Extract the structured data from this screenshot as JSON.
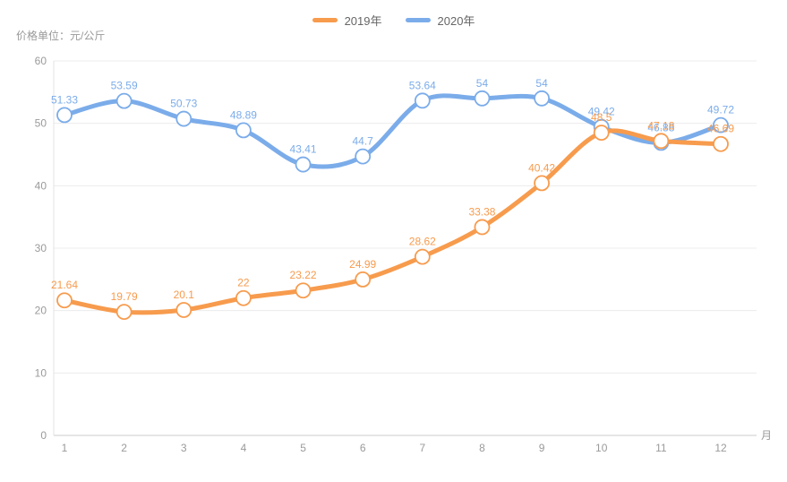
{
  "chart_data": {
    "type": "line",
    "title": "",
    "unit_label": "价格单位：元/公斤",
    "x_axis_name": "月",
    "categories": [
      1,
      2,
      3,
      4,
      5,
      6,
      7,
      8,
      9,
      10,
      11,
      12
    ],
    "y_ticks": [
      0,
      10,
      20,
      30,
      40,
      50,
      60
    ],
    "ylim": [
      0,
      60
    ],
    "grid": true,
    "smooth": true,
    "point_labels": true,
    "legend_position": "top-center",
    "series": [
      {
        "name": "2019年",
        "color": "#F79B4D",
        "values": [
          21.64,
          19.79,
          20.1,
          22,
          23.22,
          24.99,
          28.62,
          33.38,
          40.42,
          48.5,
          47.18,
          46.69
        ]
      },
      {
        "name": "2020年",
        "color": "#7BACEA",
        "values": [
          51.33,
          53.59,
          50.73,
          48.89,
          43.41,
          44.7,
          53.64,
          54,
          54,
          49.42,
          46.88,
          49.72
        ]
      }
    ],
    "style": {
      "grid_line_color": "#ECECEC",
      "x_axis_line_color": "#CBCBCB",
      "y_axis_line_color": "#E3E3E3",
      "tick_label_color": "#9A9A9A",
      "marker_fill": "#FFFFFF"
    }
  }
}
